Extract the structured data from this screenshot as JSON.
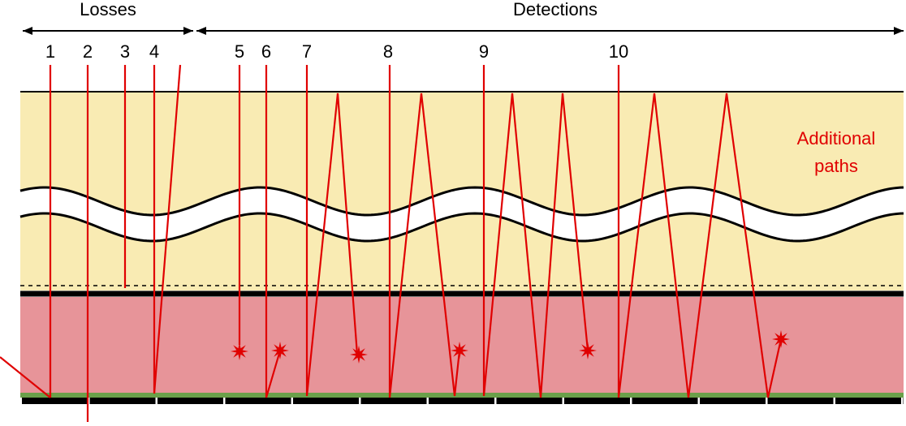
{
  "header": {
    "losses": "Losses",
    "detections": "Detections"
  },
  "path_labels": [
    "1",
    "2",
    "3",
    "4",
    "5",
    "6",
    "7",
    "8",
    "9",
    "10"
  ],
  "annotation": {
    "line1": "Additional",
    "line2": "paths"
  }
}
